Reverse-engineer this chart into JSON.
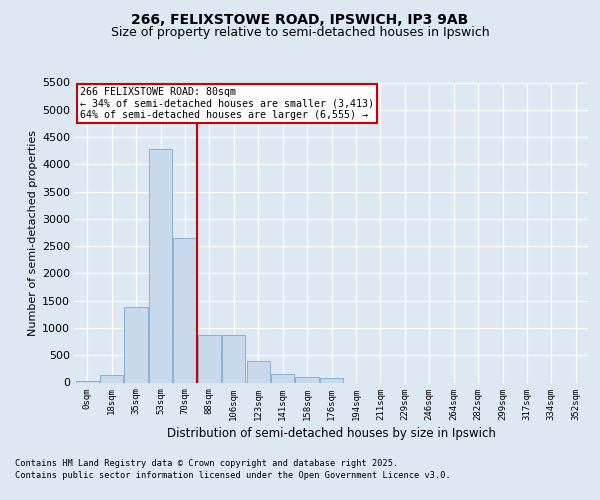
{
  "title_line1": "266, FELIXSTOWE ROAD, IPSWICH, IP3 9AB",
  "title_line2": "Size of property relative to semi-detached houses in Ipswich",
  "xlabel": "Distribution of semi-detached houses by size in Ipswich",
  "ylabel": "Number of semi-detached properties",
  "annotation_title": "266 FELIXSTOWE ROAD: 80sqm",
  "annotation_line2": "← 34% of semi-detached houses are smaller (3,413)",
  "annotation_line3": "64% of semi-detached houses are larger (6,555) →",
  "footer_line1": "Contains HM Land Registry data © Crown copyright and database right 2025.",
  "footer_line2": "Contains public sector information licensed under the Open Government Licence v3.0.",
  "bar_labels": [
    "0sqm",
    "18sqm",
    "35sqm",
    "53sqm",
    "70sqm",
    "88sqm",
    "106sqm",
    "123sqm",
    "141sqm",
    "158sqm",
    "176sqm",
    "194sqm",
    "211sqm",
    "229sqm",
    "246sqm",
    "264sqm",
    "282sqm",
    "299sqm",
    "317sqm",
    "334sqm",
    "352sqm"
  ],
  "bar_values": [
    20,
    130,
    1380,
    4280,
    2650,
    870,
    870,
    400,
    165,
    110,
    90,
    0,
    0,
    0,
    0,
    0,
    0,
    0,
    0,
    0,
    0
  ],
  "bar_color": "#c8d9ec",
  "bar_edge_color": "#7aaacf",
  "vline_color": "#cc0000",
  "vline_pos": 4.5,
  "ylim": [
    0,
    5500
  ],
  "yticks": [
    0,
    500,
    1000,
    1500,
    2000,
    2500,
    3000,
    3500,
    4000,
    4500,
    5000,
    5500
  ],
  "background_color": "#dde8f3",
  "plot_bg_color": "#dde8f3",
  "annotation_box_color": "#ffffff",
  "annotation_box_edge": "#cc0000",
  "grid_color": "#ffffff",
  "title_fontsize": 10,
  "subtitle_fontsize": 9
}
